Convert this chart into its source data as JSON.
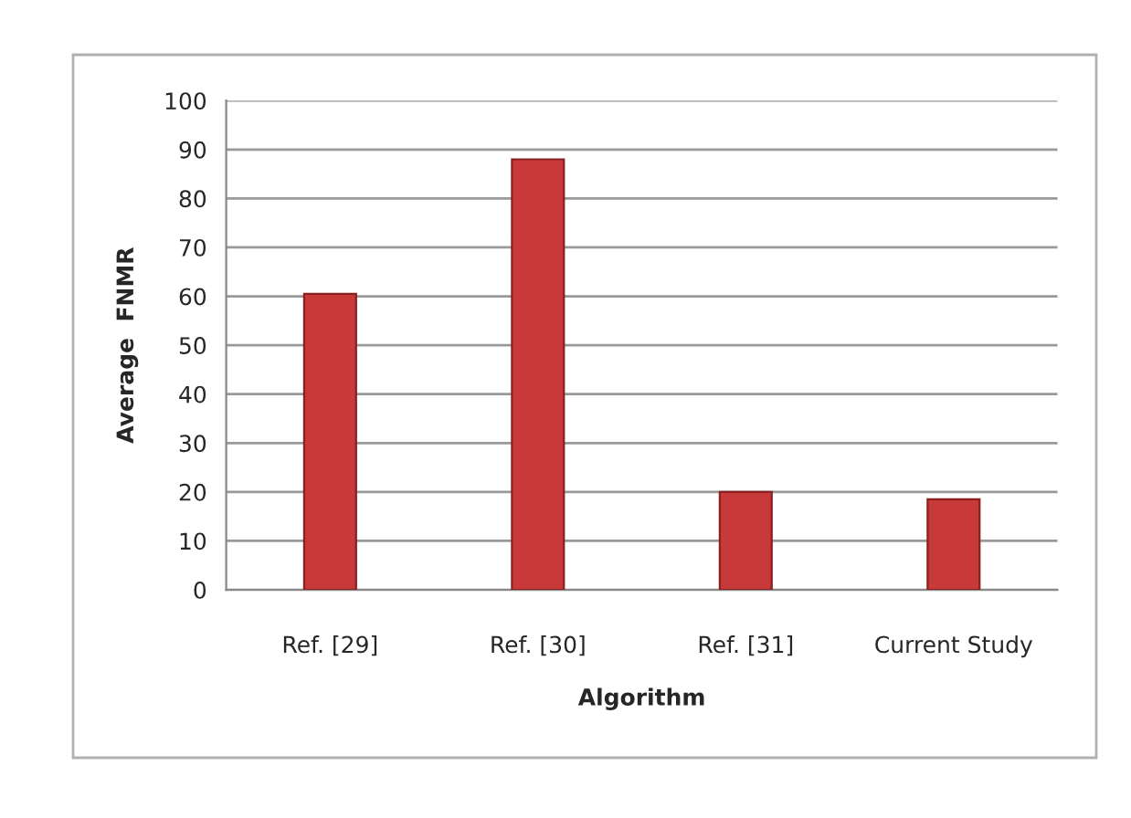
{
  "chart_data": {
    "type": "bar",
    "xlabel": "Algorithm",
    "ylabel": "Average  FNMR",
    "categories": [
      "Ref. [29]",
      "Ref. [30]",
      "Ref. [31]",
      "Current Study"
    ],
    "values": [
      60.5,
      88,
      20,
      18.5
    ],
    "color": "#c83a3a",
    "ylim": [
      0,
      100
    ],
    "yticks": [
      0,
      10,
      20,
      30,
      40,
      50,
      60,
      70,
      80,
      90,
      100
    ],
    "grid": "y"
  }
}
